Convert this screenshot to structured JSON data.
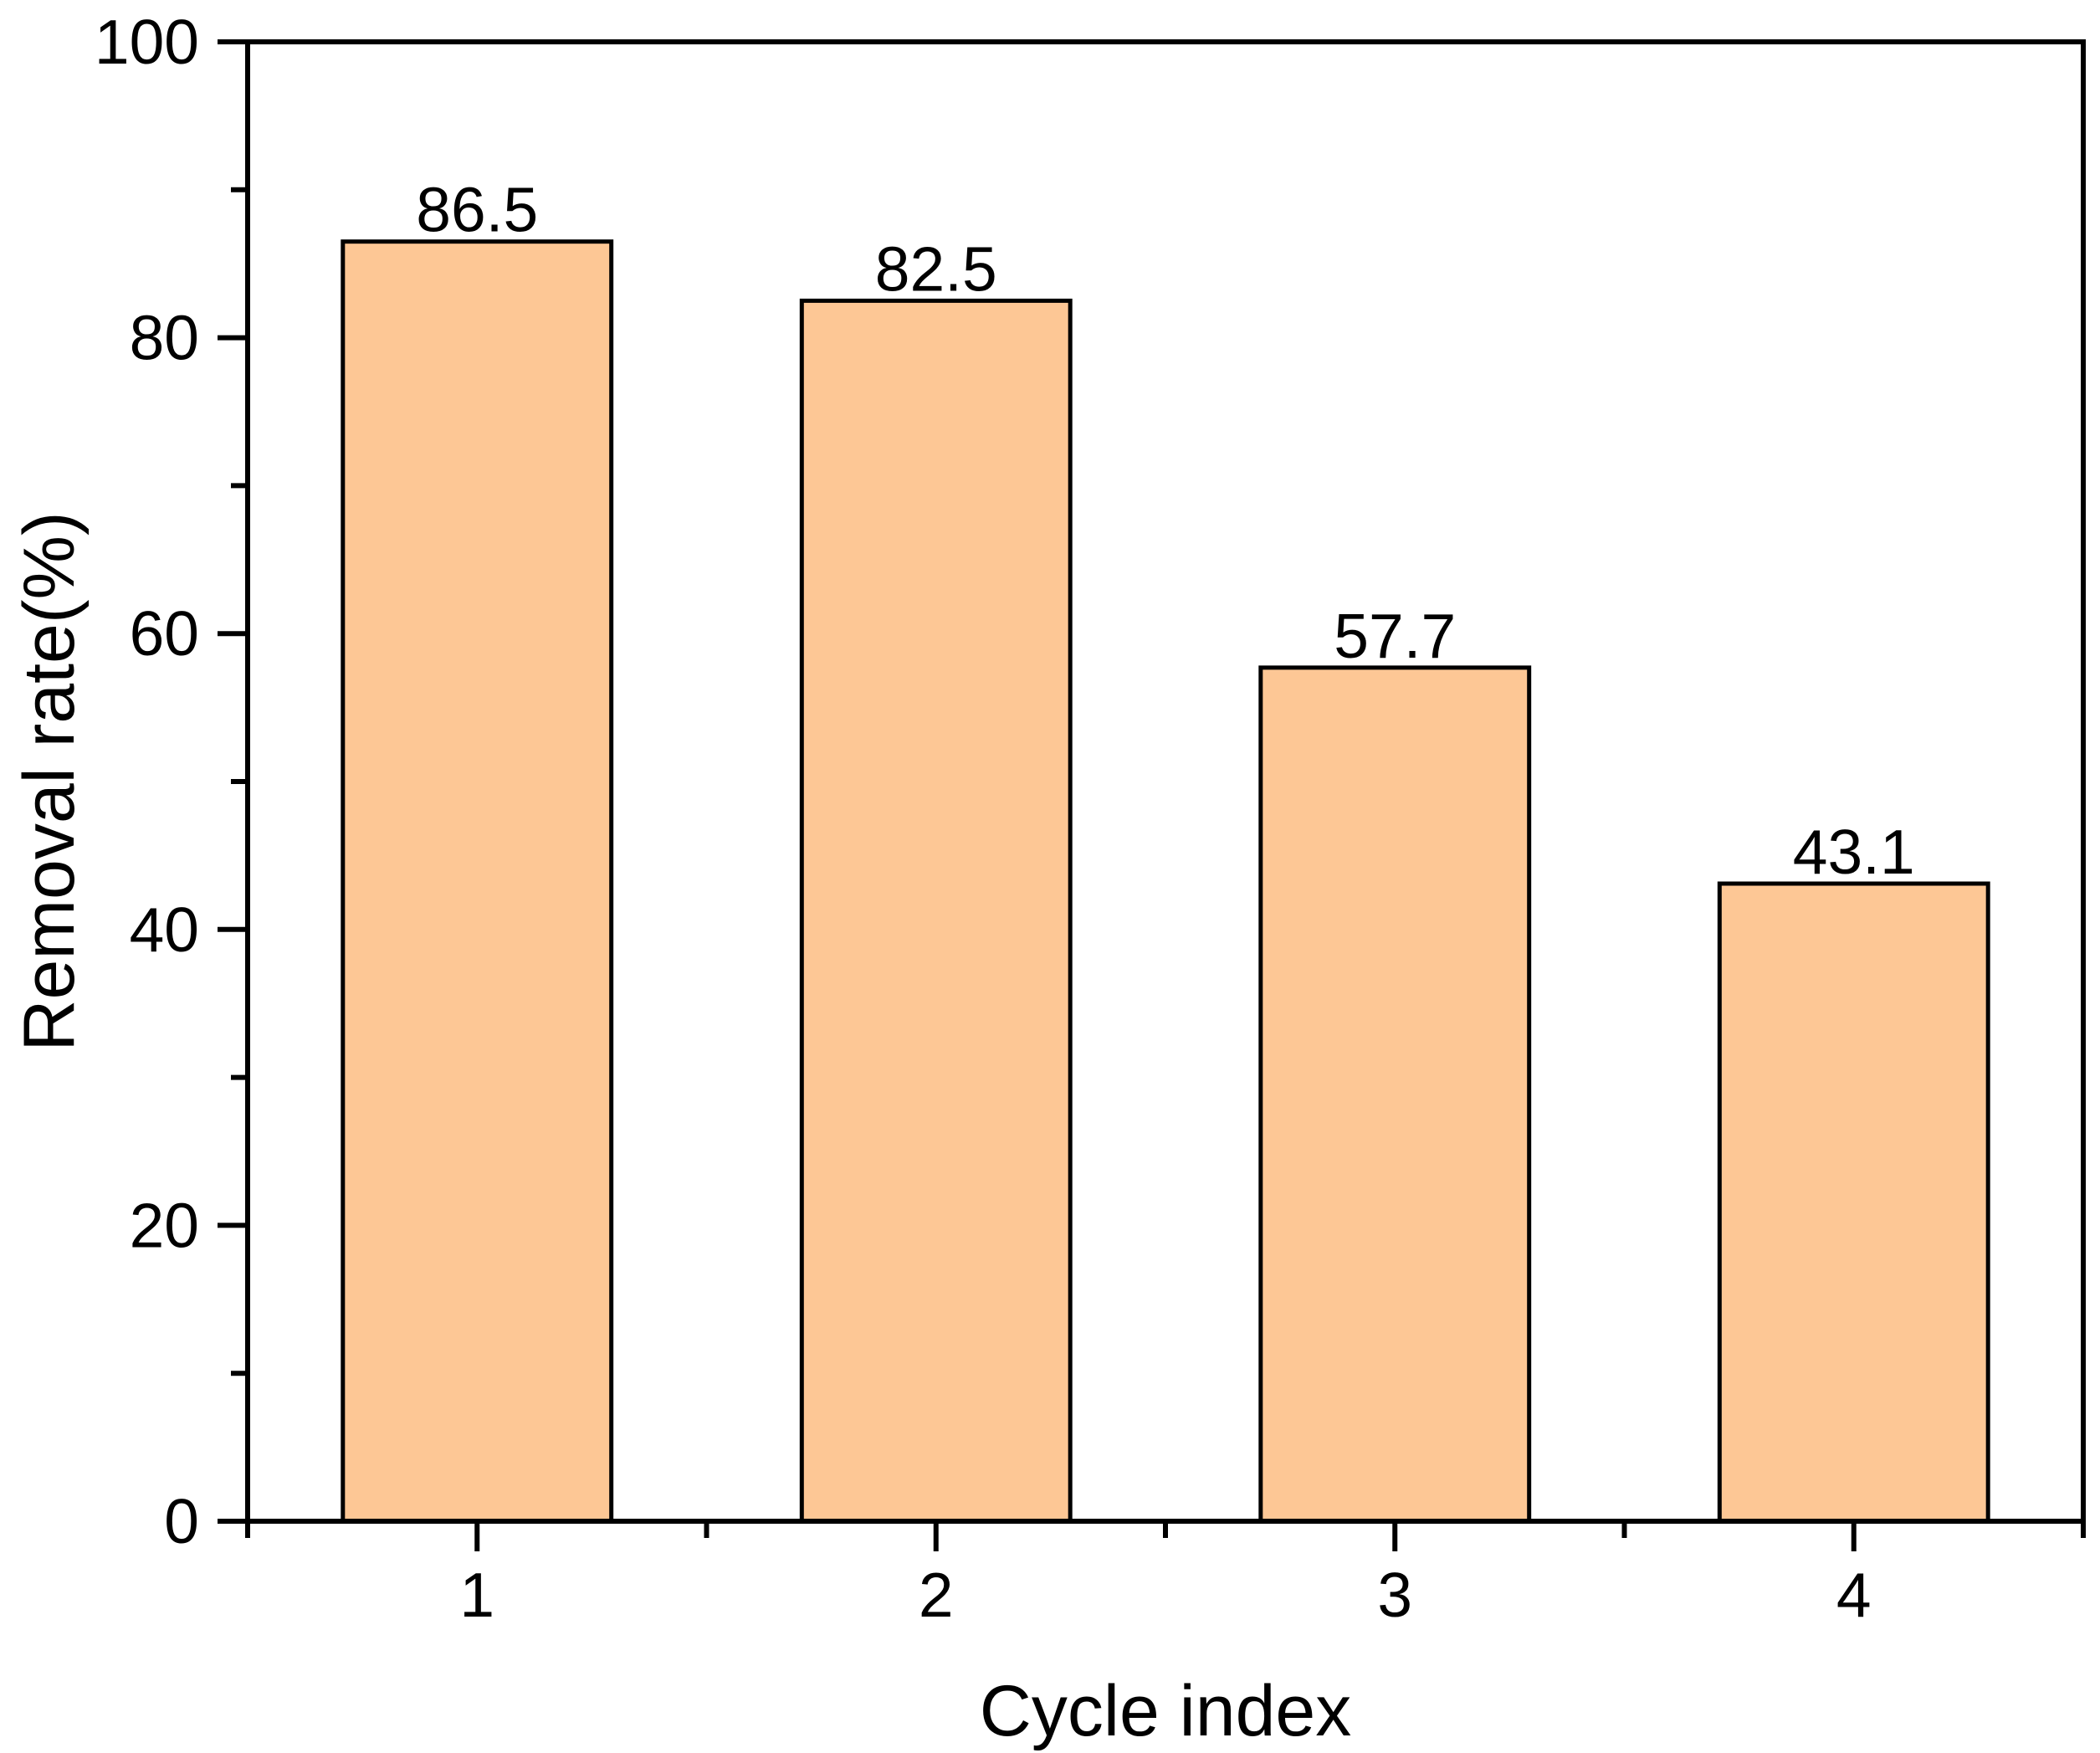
{
  "chart_data": {
    "type": "bar",
    "title": "",
    "xlabel": "Cycle index",
    "ylabel": "Removal rate(%)",
    "categories": [
      "1",
      "2",
      "3",
      "4"
    ],
    "values": [
      86.5,
      82.5,
      57.7,
      43.1
    ],
    "value_labels": [
      "86.5",
      "82.5",
      "57.7",
      "43.1"
    ],
    "ylim": [
      0,
      100
    ],
    "ytick_major": [
      0,
      20,
      40,
      60,
      80,
      100
    ],
    "ytick_major_labels": [
      "0",
      "20",
      "40",
      "60",
      "80",
      "100"
    ],
    "ytick_minor": [
      10,
      30,
      50,
      70,
      90
    ],
    "x_minor_ticks_between_categories": true,
    "grid": "off",
    "legend": "none",
    "colors": {
      "bar_fill": "#fdc795",
      "bar_border": "#000000",
      "axis": "#000000",
      "text": "#000000",
      "background": "#ffffff"
    }
  }
}
